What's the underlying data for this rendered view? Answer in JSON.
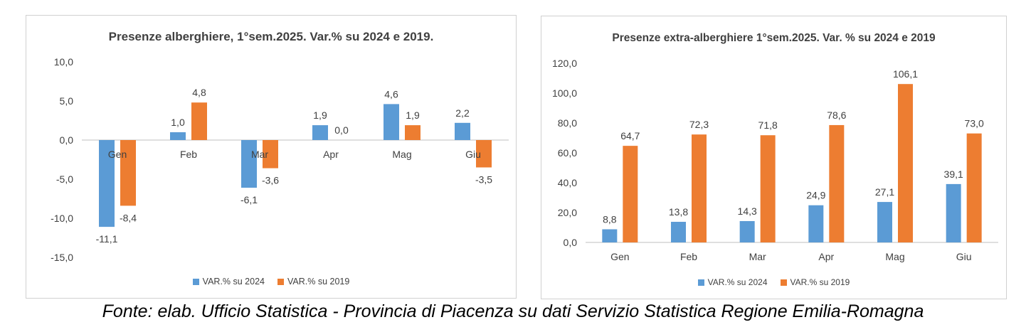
{
  "chart_data": [
    {
      "type": "bar",
      "title": "Presenze alberghiere, 1°sem.2025. Var.% su 2024 e 2019.",
      "categories": [
        "Gen",
        "Feb",
        "Mar",
        "Apr",
        "Mag",
        "Giu"
      ],
      "series": [
        {
          "name": "VAR.% su 2024",
          "values": [
            -11.1,
            1.0,
            -6.1,
            1.9,
            4.6,
            2.2
          ],
          "labels": [
            "-11,1",
            "1,0",
            "-6,1",
            "1,9",
            "4,6",
            "2,2"
          ],
          "color": "#5B9BD5"
        },
        {
          "name": "VAR.% su 2019",
          "values": [
            -8.4,
            4.8,
            -3.6,
            0.0,
            1.9,
            -3.5
          ],
          "labels": [
            "-8,4",
            "4,8",
            "-3,6",
            "0,0",
            "1,9",
            "-3,5"
          ],
          "color": "#ED7D31"
        }
      ],
      "y_ticks": [
        "10,0",
        "5,0",
        "0,0",
        "-5,0",
        "-10,0",
        "-15,0"
      ],
      "ylim": [
        -15,
        10
      ],
      "grid": false,
      "legend_position": "bottom"
    },
    {
      "type": "bar",
      "title": "Presenze extra-alberghiere 1°sem.2025. Var. % su 2024 e 2019",
      "categories": [
        "Gen",
        "Feb",
        "Mar",
        "Apr",
        "Mag",
        "Giu"
      ],
      "series": [
        {
          "name": "VAR.% su 2024",
          "values": [
            8.8,
            13.8,
            14.3,
            24.9,
            27.1,
            39.1
          ],
          "labels": [
            "8,8",
            "13,8",
            "14,3",
            "24,9",
            "27,1",
            "39,1"
          ],
          "color": "#5B9BD5"
        },
        {
          "name": "VAR.% su 2019",
          "values": [
            64.7,
            72.3,
            71.8,
            78.6,
            106.1,
            73.0
          ],
          "labels": [
            "64,7",
            "72,3",
            "71,8",
            "78,6",
            "106,1",
            "73,0"
          ],
          "color": "#ED7D31"
        }
      ],
      "y_ticks": [
        "120,0",
        "100,0",
        "80,0",
        "60,0",
        "40,0",
        "20,0",
        "0,0"
      ],
      "ylim": [
        0,
        120
      ],
      "grid": false,
      "legend_position": "bottom"
    }
  ],
  "footer": "Fonte: elab. Ufficio Statistica - Provincia di Piacenza su dati Servizio Statistica Regione Emilia-Romagna"
}
